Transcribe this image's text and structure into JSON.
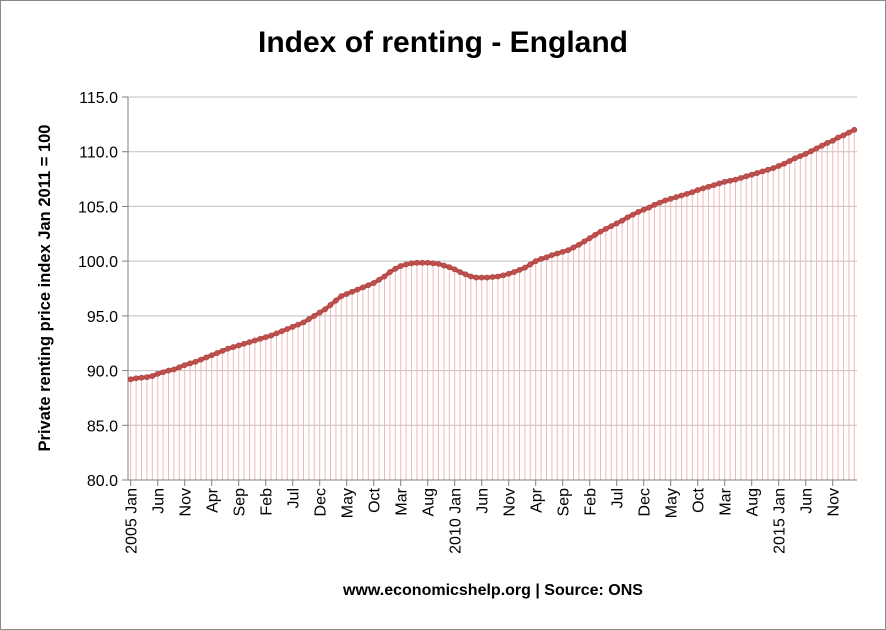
{
  "chart_data": {
    "type": "line",
    "title": "Index of renting - England",
    "ylabel": "Private renting price index Jan 2011 = 100",
    "xlabel": "",
    "footer": "www.economicshelp.org | Source: ONS",
    "ylim": [
      80,
      115
    ],
    "y_ticks": [
      "80.0",
      "85.0",
      "90.0",
      "95.0",
      "100.0",
      "105.0",
      "110.0",
      "115.0"
    ],
    "grid": true,
    "legend": "none",
    "x_tick_labels": [
      "2005 Jan",
      "Jun",
      "Nov",
      "Apr",
      "Sep",
      "Feb",
      "Jul",
      "Dec",
      "May",
      "Oct",
      "Mar",
      "Aug",
      "2010 Jan",
      "Jun",
      "Nov",
      "Apr",
      "Sep",
      "Feb",
      "Jul",
      "Dec",
      "May",
      "Oct",
      "Mar",
      "Aug",
      "2015 Jan",
      "Jun",
      "Nov"
    ],
    "colors": {
      "line": "#c0504d",
      "drop_lines": "#f2b8b8",
      "grid": "#bfbfbf",
      "axis": "#808080"
    },
    "series": [
      {
        "values": [
          89.2,
          89.3,
          89.35,
          89.4,
          89.5,
          89.7,
          89.85,
          90.0,
          90.1,
          90.3,
          90.5,
          90.65,
          90.8,
          91.0,
          91.2,
          91.4,
          91.6,
          91.8,
          92.0,
          92.15,
          92.3,
          92.45,
          92.6,
          92.75,
          92.9,
          93.05,
          93.2,
          93.4,
          93.6,
          93.8,
          94.0,
          94.2,
          94.4,
          94.7,
          95.0,
          95.3,
          95.6,
          96.0,
          96.4,
          96.8,
          97.0,
          97.2,
          97.4,
          97.6,
          97.8,
          98.0,
          98.3,
          98.6,
          99.0,
          99.3,
          99.55,
          99.7,
          99.8,
          99.85,
          99.85,
          99.85,
          99.8,
          99.75,
          99.6,
          99.45,
          99.25,
          99.0,
          98.8,
          98.6,
          98.5,
          98.5,
          98.5,
          98.55,
          98.6,
          98.7,
          98.85,
          99.0,
          99.2,
          99.4,
          99.7,
          100.0,
          100.2,
          100.35,
          100.55,
          100.7,
          100.85,
          101.0,
          101.25,
          101.5,
          101.8,
          102.1,
          102.4,
          102.7,
          102.95,
          103.2,
          103.45,
          103.7,
          104.0,
          104.25,
          104.5,
          104.7,
          104.9,
          105.15,
          105.35,
          105.55,
          105.7,
          105.85,
          106.0,
          106.15,
          106.3,
          106.5,
          106.65,
          106.8,
          106.95,
          107.1,
          107.25,
          107.35,
          107.45,
          107.6,
          107.75,
          107.9,
          108.05,
          108.2,
          108.35,
          108.5,
          108.7,
          108.9,
          109.15,
          109.4,
          109.6,
          109.8,
          110.05,
          110.3,
          110.55,
          110.8,
          111.0,
          111.3,
          111.5,
          111.75,
          112.0
        ]
      }
    ]
  }
}
